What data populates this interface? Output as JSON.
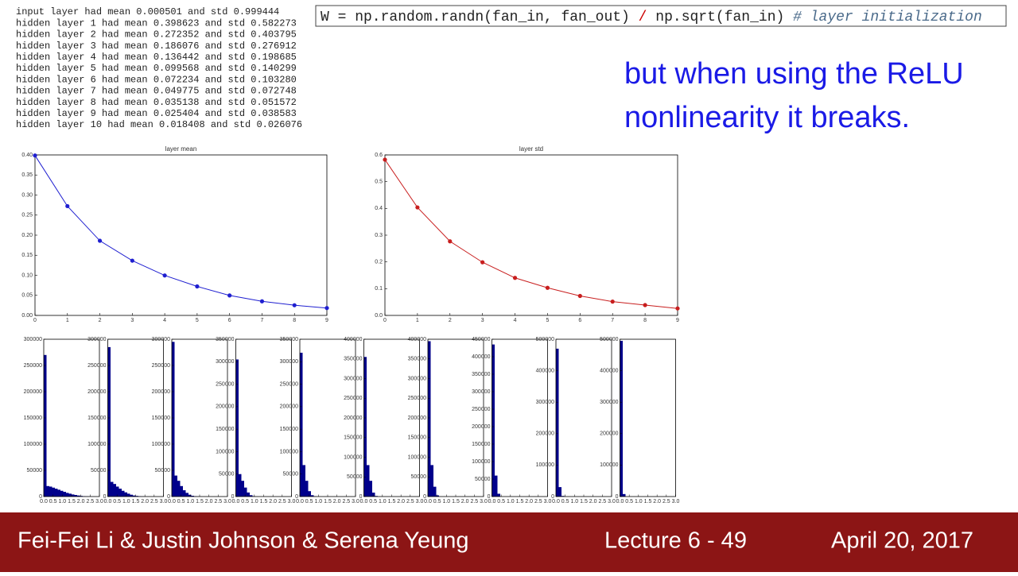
{
  "log_lines": [
    "input layer had mean 0.000501 and std 0.999444",
    "hidden layer 1 had mean 0.398623 and std 0.582273",
    "hidden layer 2 had mean 0.272352 and std 0.403795",
    "hidden layer 3 had mean 0.186076 and std 0.276912",
    "hidden layer 4 had mean 0.136442 and std 0.198685",
    "hidden layer 5 had mean 0.099568 and std 0.140299",
    "hidden layer 6 had mean 0.072234 and std 0.103280",
    "hidden layer 7 had mean 0.049775 and std 0.072748",
    "hidden layer 8 had mean 0.035138 and std 0.051572",
    "hidden layer 9 had mean 0.025404 and std 0.038583",
    "hidden layer 10 had mean 0.018408 and std 0.026076"
  ],
  "code": {
    "parts": [
      "W = np.random.randn(fan_in, fan_out) ",
      "/",
      " np.sqrt(fan_in) ",
      "# layer initialization"
    ]
  },
  "heading": [
    "but when using the ReLU",
    "nonlinearity it breaks."
  ],
  "footer": {
    "authors": "Fei-Fei Li & Justin Johnson & Serena Yeung",
    "lecture": "Lecture 6 - 49",
    "date": "April 20, 2017"
  },
  "chart_data": [
    {
      "type": "line",
      "title": "layer mean",
      "color": "#1f1fd0",
      "x": [
        0,
        1,
        2,
        3,
        4,
        5,
        6,
        7,
        8,
        9
      ],
      "values": [
        0.398623,
        0.272352,
        0.186076,
        0.136442,
        0.099568,
        0.072234,
        0.049775,
        0.035138,
        0.025404,
        0.018408
      ],
      "xlim": [
        0,
        9
      ],
      "xticks": [
        0,
        1,
        2,
        3,
        4,
        5,
        6,
        7,
        8,
        9
      ],
      "ylim": [
        0,
        0.4
      ],
      "yticks": [
        {
          "value": 0,
          "label": "0.00"
        },
        {
          "value": 0.05,
          "label": "0.05"
        },
        {
          "value": 0.1,
          "label": "0.10"
        },
        {
          "value": 0.15,
          "label": "0.15"
        },
        {
          "value": 0.2,
          "label": "0.20"
        },
        {
          "value": 0.25,
          "label": "0.25"
        },
        {
          "value": 0.3,
          "label": "0.30"
        },
        {
          "value": 0.35,
          "label": "0.35"
        },
        {
          "value": 0.4,
          "label": "0.40"
        }
      ]
    },
    {
      "type": "line",
      "title": "layer std",
      "color": "#c81e1e",
      "x": [
        0,
        1,
        2,
        3,
        4,
        5,
        6,
        7,
        8,
        9
      ],
      "values": [
        0.582273,
        0.403795,
        0.276912,
        0.198685,
        0.140299,
        0.10328,
        0.072748,
        0.051572,
        0.038583,
        0.026076
      ],
      "xlim": [
        0,
        9
      ],
      "xticks": [
        0,
        1,
        2,
        3,
        4,
        5,
        6,
        7,
        8,
        9
      ],
      "ylim": [
        0,
        0.6
      ],
      "yticks": [
        {
          "value": 0,
          "label": "0.0"
        },
        {
          "value": 0.1,
          "label": "0.1"
        },
        {
          "value": 0.2,
          "label": "0.2"
        },
        {
          "value": 0.3,
          "label": "0.3"
        },
        {
          "value": 0.4,
          "label": "0.4"
        },
        {
          "value": 0.5,
          "label": "0.5"
        },
        {
          "value": 0.6,
          "label": "0.6"
        }
      ]
    },
    {
      "type": "histogram",
      "color": "#00008b",
      "bins": [
        0,
        0.15,
        0.3,
        0.45,
        0.6,
        0.75,
        0.9,
        1.05,
        1.2,
        1.35,
        1.5,
        1.65,
        1.8,
        1.95,
        2.1,
        2.25,
        2.4,
        2.55,
        2.7,
        2.85,
        3.0
      ],
      "values": [
        270000,
        20000,
        19000,
        17000,
        15000,
        13000,
        11000,
        9000,
        7000,
        5500,
        4000,
        3000,
        2000,
        1200,
        700,
        400,
        200,
        100,
        50,
        0
      ],
      "xlim": [
        0,
        3
      ],
      "xticks": [
        {
          "value": 0,
          "label": "0.0"
        },
        {
          "value": 0.5,
          "label": "0.5"
        },
        {
          "value": 1,
          "label": "1.0"
        },
        {
          "value": 1.5,
          "label": "1.5"
        },
        {
          "value": 2,
          "label": "2.0"
        },
        {
          "value": 2.5,
          "label": "2.5"
        },
        {
          "value": 3,
          "label": "3.0"
        }
      ],
      "ylim": [
        0,
        300000
      ],
      "yticks": [
        0,
        50000,
        100000,
        150000,
        200000,
        250000,
        300000
      ]
    },
    {
      "type": "histogram",
      "color": "#00008b",
      "bins": [
        0,
        0.15,
        0.3,
        0.45,
        0.6,
        0.75,
        0.9,
        1.05,
        1.2,
        1.35,
        1.5,
        1.65,
        1.8,
        1.95,
        2.1,
        2.25,
        2.4,
        2.55,
        2.7,
        2.85,
        3.0
      ],
      "values": [
        285000,
        28000,
        24000,
        19000,
        15000,
        11000,
        8000,
        5500,
        3500,
        2000,
        1200,
        600,
        300,
        150,
        50,
        0,
        0,
        0,
        0,
        0
      ],
      "xlim": [
        0,
        3
      ],
      "xticks": [
        {
          "value": 0,
          "label": "0.0"
        },
        {
          "value": 0.5,
          "label": "0.5"
        },
        {
          "value": 1,
          "label": "1.0"
        },
        {
          "value": 1.5,
          "label": "1.5"
        },
        {
          "value": 2,
          "label": "2.0"
        },
        {
          "value": 2.5,
          "label": "2.5"
        },
        {
          "value": 3,
          "label": "3.0"
        }
      ],
      "ylim": [
        0,
        300000
      ],
      "yticks": [
        0,
        50000,
        100000,
        150000,
        200000,
        250000,
        300000
      ]
    },
    {
      "type": "histogram",
      "color": "#00008b",
      "bins": [
        0,
        0.15,
        0.3,
        0.45,
        0.6,
        0.75,
        0.9,
        1.05,
        1.2,
        1.35,
        1.5,
        1.65,
        1.8,
        1.95,
        2.1,
        2.25,
        2.4,
        2.55,
        2.7,
        2.85,
        3.0
      ],
      "values": [
        295000,
        40000,
        30000,
        20000,
        12000,
        7000,
        3500,
        1500,
        600,
        200,
        80,
        0,
        0,
        0,
        0,
        0,
        0,
        0,
        0,
        0
      ],
      "xlim": [
        0,
        3
      ],
      "xticks": [
        {
          "value": 0,
          "label": "0.0"
        },
        {
          "value": 0.5,
          "label": "0.5"
        },
        {
          "value": 1,
          "label": "1.0"
        },
        {
          "value": 1.5,
          "label": "1.5"
        },
        {
          "value": 2,
          "label": "2.0"
        },
        {
          "value": 2.5,
          "label": "2.5"
        },
        {
          "value": 3,
          "label": "3.0"
        }
      ],
      "ylim": [
        0,
        300000
      ],
      "yticks": [
        0,
        50000,
        100000,
        150000,
        200000,
        250000,
        300000
      ]
    },
    {
      "type": "histogram",
      "color": "#00008b",
      "bins": [
        0,
        0.15,
        0.3,
        0.45,
        0.6,
        0.75,
        0.9,
        1.05,
        1.2,
        1.35,
        1.5,
        1.65,
        1.8,
        1.95,
        2.1,
        2.25,
        2.4,
        2.55,
        2.7,
        2.85,
        3.0
      ],
      "values": [
        305000,
        50000,
        35000,
        20000,
        9000,
        3000,
        800,
        200,
        0,
        0,
        0,
        0,
        0,
        0,
        0,
        0,
        0,
        0,
        0,
        0
      ],
      "xlim": [
        0,
        3
      ],
      "xticks": [
        {
          "value": 0,
          "label": "0.0"
        },
        {
          "value": 0.5,
          "label": "0.5"
        },
        {
          "value": 1,
          "label": "1.0"
        },
        {
          "value": 1.5,
          "label": "1.5"
        },
        {
          "value": 2,
          "label": "2.0"
        },
        {
          "value": 2.5,
          "label": "2.5"
        },
        {
          "value": 3,
          "label": "3.0"
        }
      ],
      "ylim": [
        0,
        350000
      ],
      "yticks": [
        0,
        50000,
        100000,
        150000,
        200000,
        250000,
        300000,
        350000
      ]
    },
    {
      "type": "histogram",
      "color": "#00008b",
      "bins": [
        0,
        0.15,
        0.3,
        0.45,
        0.6,
        0.75,
        0.9,
        1.05,
        1.2,
        1.35,
        1.5,
        1.65,
        1.8,
        1.95,
        2.1,
        2.25,
        2.4,
        2.55,
        2.7,
        2.85,
        3.0
      ],
      "values": [
        320000,
        70000,
        35000,
        12000,
        3000,
        500,
        0,
        0,
        0,
        0,
        0,
        0,
        0,
        0,
        0,
        0,
        0,
        0,
        0,
        0
      ],
      "xlim": [
        0,
        3
      ],
      "xticks": [
        {
          "value": 0,
          "label": "0.0"
        },
        {
          "value": 0.5,
          "label": "0.5"
        },
        {
          "value": 1,
          "label": "1.0"
        },
        {
          "value": 1.5,
          "label": "1.5"
        },
        {
          "value": 2,
          "label": "2.0"
        },
        {
          "value": 2.5,
          "label": "2.5"
        },
        {
          "value": 3,
          "label": "3.0"
        }
      ],
      "ylim": [
        0,
        350000
      ],
      "yticks": [
        0,
        50000,
        100000,
        150000,
        200000,
        250000,
        300000,
        350000
      ]
    },
    {
      "type": "histogram",
      "color": "#00008b",
      "bins": [
        0,
        0.15,
        0.3,
        0.45,
        0.6,
        0.75,
        0.9,
        1.05,
        1.2,
        1.35,
        1.5,
        1.65,
        1.8,
        1.95,
        2.1,
        2.25,
        2.4,
        2.55,
        2.7,
        2.85,
        3.0
      ],
      "values": [
        355000,
        80000,
        40000,
        10000,
        1500,
        0,
        0,
        0,
        0,
        0,
        0,
        0,
        0,
        0,
        0,
        0,
        0,
        0,
        0,
        0
      ],
      "xlim": [
        0,
        3
      ],
      "xticks": [
        {
          "value": 0,
          "label": "0.0"
        },
        {
          "value": 0.5,
          "label": "0.5"
        },
        {
          "value": 1,
          "label": "1.0"
        },
        {
          "value": 1.5,
          "label": "1.5"
        },
        {
          "value": 2,
          "label": "2.0"
        },
        {
          "value": 2.5,
          "label": "2.5"
        },
        {
          "value": 3,
          "label": "3.0"
        }
      ],
      "ylim": [
        0,
        400000
      ],
      "yticks": [
        0,
        50000,
        100000,
        150000,
        200000,
        250000,
        300000,
        350000,
        400000
      ]
    },
    {
      "type": "histogram",
      "color": "#00008b",
      "bins": [
        0,
        0.15,
        0.3,
        0.45,
        0.6,
        0.75,
        0.9,
        1.05,
        1.2,
        1.35,
        1.5,
        1.65,
        1.8,
        1.95,
        2.1,
        2.25,
        2.4,
        2.55,
        2.7,
        2.85,
        3.0
      ],
      "values": [
        395000,
        80000,
        25000,
        3000,
        0,
        0,
        0,
        0,
        0,
        0,
        0,
        0,
        0,
        0,
        0,
        0,
        0,
        0,
        0,
        0
      ],
      "xlim": [
        0,
        3
      ],
      "xticks": [
        {
          "value": 0,
          "label": "0.0"
        },
        {
          "value": 0.5,
          "label": "0.5"
        },
        {
          "value": 1,
          "label": "1.0"
        },
        {
          "value": 1.5,
          "label": "1.5"
        },
        {
          "value": 2,
          "label": "2.0"
        },
        {
          "value": 2.5,
          "label": "2.5"
        },
        {
          "value": 3,
          "label": "3.0"
        }
      ],
      "ylim": [
        0,
        400000
      ],
      "yticks": [
        0,
        50000,
        100000,
        150000,
        200000,
        250000,
        300000,
        350000,
        400000
      ]
    },
    {
      "type": "histogram",
      "color": "#00008b",
      "bins": [
        0,
        0.15,
        0.3,
        0.45,
        0.6,
        0.75,
        0.9,
        1.05,
        1.2,
        1.35,
        1.5,
        1.65,
        1.8,
        1.95,
        2.1,
        2.25,
        2.4,
        2.55,
        2.7,
        2.85,
        3.0
      ],
      "values": [
        435000,
        60000,
        8000,
        0,
        0,
        0,
        0,
        0,
        0,
        0,
        0,
        0,
        0,
        0,
        0,
        0,
        0,
        0,
        0,
        0
      ],
      "xlim": [
        0,
        3
      ],
      "xticks": [
        {
          "value": 0,
          "label": "0.0"
        },
        {
          "value": 0.5,
          "label": "0.5"
        },
        {
          "value": 1,
          "label": "1.0"
        },
        {
          "value": 1.5,
          "label": "1.5"
        },
        {
          "value": 2,
          "label": "2.0"
        },
        {
          "value": 2.5,
          "label": "2.5"
        },
        {
          "value": 3,
          "label": "3.0"
        }
      ],
      "ylim": [
        0,
        450000
      ],
      "yticks": [
        0,
        50000,
        100000,
        150000,
        200000,
        250000,
        300000,
        350000,
        400000,
        450000
      ]
    },
    {
      "type": "histogram",
      "color": "#00008b",
      "bins": [
        0,
        0.15,
        0.3,
        0.45,
        0.6,
        0.75,
        0.9,
        1.05,
        1.2,
        1.35,
        1.5,
        1.65,
        1.8,
        1.95,
        2.1,
        2.25,
        2.4,
        2.55,
        2.7,
        2.85,
        3.0
      ],
      "values": [
        470000,
        30000,
        2000,
        0,
        0,
        0,
        0,
        0,
        0,
        0,
        0,
        0,
        0,
        0,
        0,
        0,
        0,
        0,
        0,
        0
      ],
      "xlim": [
        0,
        3
      ],
      "xticks": [
        {
          "value": 0,
          "label": "0.0"
        },
        {
          "value": 0.5,
          "label": "0.5"
        },
        {
          "value": 1,
          "label": "1.0"
        },
        {
          "value": 1.5,
          "label": "1.5"
        },
        {
          "value": 2,
          "label": "2.0"
        },
        {
          "value": 2.5,
          "label": "2.5"
        },
        {
          "value": 3,
          "label": "3.0"
        }
      ],
      "ylim": [
        0,
        500000
      ],
      "yticks": [
        0,
        100000,
        200000,
        300000,
        400000,
        500000
      ]
    },
    {
      "type": "histogram",
      "color": "#00008b",
      "bins": [
        0,
        0.15,
        0.3,
        0.45,
        0.6,
        0.75,
        0.9,
        1.05,
        1.2,
        1.35,
        1.5,
        1.65,
        1.8,
        1.95,
        2.1,
        2.25,
        2.4,
        2.55,
        2.7,
        2.85,
        3.0
      ],
      "values": [
        495000,
        8000,
        0,
        0,
        0,
        0,
        0,
        0,
        0,
        0,
        0,
        0,
        0,
        0,
        0,
        0,
        0,
        0,
        0,
        0
      ],
      "xlim": [
        0,
        3
      ],
      "xticks": [
        {
          "value": 0,
          "label": "0.0"
        },
        {
          "value": 0.5,
          "label": "0.5"
        },
        {
          "value": 1,
          "label": "1.0"
        },
        {
          "value": 1.5,
          "label": "1.5"
        },
        {
          "value": 2,
          "label": "2.0"
        },
        {
          "value": 2.5,
          "label": "2.5"
        },
        {
          "value": 3,
          "label": "3.0"
        }
      ],
      "ylim": [
        0,
        500000
      ],
      "yticks": [
        0,
        100000,
        200000,
        300000,
        400000,
        500000
      ]
    }
  ]
}
